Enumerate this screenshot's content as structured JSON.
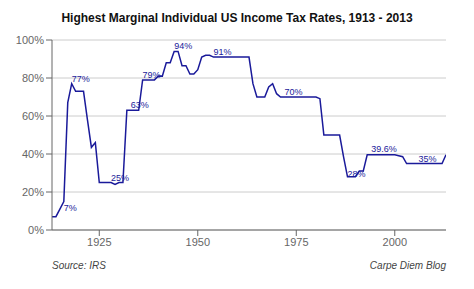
{
  "chart_data": {
    "type": "line",
    "title": "Highest Marginal Individual US Income Tax Rates, 1913 - 2013",
    "color": "#1a1a9a",
    "grid": true,
    "xlim": [
      1913,
      2013
    ],
    "ylim": [
      0,
      100
    ],
    "xticks": [
      1925,
      1950,
      1975,
      2000
    ],
    "yticks": [
      {
        "value": 0,
        "label": "0%"
      },
      {
        "value": 20,
        "label": "20%"
      },
      {
        "value": 40,
        "label": "40%"
      },
      {
        "value": 60,
        "label": "60%"
      },
      {
        "value": 80,
        "label": "80%"
      },
      {
        "value": 100,
        "label": "100%"
      }
    ],
    "annotations": [
      {
        "text": "7%",
        "x": 1916,
        "y": 9
      },
      {
        "text": "77%",
        "x": 1918,
        "y": 77
      },
      {
        "text": "25%",
        "x": 1928,
        "y": 25
      },
      {
        "text": "63%",
        "x": 1933,
        "y": 63
      },
      {
        "text": "79%",
        "x": 1936,
        "y": 79
      },
      {
        "text": "94%",
        "x": 1944,
        "y": 94
      },
      {
        "text": "91%",
        "x": 1954,
        "y": 91
      },
      {
        "text": "70%",
        "x": 1972,
        "y": 70
      },
      {
        "text": "28%",
        "x": 1988,
        "y": 27
      },
      {
        "text": "39.6%",
        "x": 1994,
        "y": 40
      },
      {
        "text": "35%",
        "x": 2006,
        "y": 35
      },
      {
        "text": "Source: IRS"
      },
      {
        "text": "Carpe Diem Blog"
      }
    ],
    "x": [
      1913,
      1914,
      1916,
      1917,
      1918,
      1919,
      1920,
      1921,
      1922,
      1923,
      1924,
      1925,
      1926,
      1927,
      1928,
      1929,
      1930,
      1931,
      1932,
      1933,
      1934,
      1935,
      1936,
      1937,
      1938,
      1939,
      1940,
      1941,
      1942,
      1943,
      1944,
      1945,
      1946,
      1947,
      1948,
      1949,
      1950,
      1951,
      1952,
      1953,
      1954,
      1955,
      1956,
      1957,
      1958,
      1959,
      1960,
      1961,
      1962,
      1963,
      1964,
      1965,
      1966,
      1967,
      1968,
      1969,
      1970,
      1971,
      1972,
      1973,
      1974,
      1975,
      1976,
      1977,
      1978,
      1979,
      1980,
      1981,
      1982,
      1983,
      1984,
      1985,
      1986,
      1987,
      1988,
      1989,
      1990,
      1991,
      1992,
      1993,
      1994,
      1995,
      1996,
      1997,
      1998,
      1999,
      2000,
      2001,
      2002,
      2003,
      2004,
      2005,
      2006,
      2007,
      2008,
      2009,
      2010,
      2011,
      2012,
      2013
    ],
    "values": [
      7,
      7,
      15,
      67,
      77,
      73,
      73,
      73,
      58,
      43.5,
      46,
      25,
      25,
      25,
      25,
      24,
      25,
      25,
      63,
      63,
      63,
      63,
      79,
      79,
      79,
      79,
      81.1,
      81,
      88,
      88,
      94,
      94,
      86.45,
      86.45,
      82.13,
      82.13,
      84.36,
      91,
      92,
      92,
      91,
      91,
      91,
      91,
      91,
      91,
      91,
      91,
      91,
      91,
      77,
      70,
      70,
      70,
      75.25,
      77,
      71.75,
      70,
      70,
      70,
      70,
      70,
      70,
      70,
      70,
      70,
      70,
      69.125,
      50,
      50,
      50,
      50,
      50,
      38.5,
      28,
      28,
      28,
      31,
      31,
      39.6,
      39.6,
      39.6,
      39.6,
      39.6,
      39.6,
      39.6,
      39.6,
      39.1,
      38.6,
      35,
      35,
      35,
      35,
      35,
      35,
      35,
      35,
      35,
      35,
      39.6
    ]
  }
}
